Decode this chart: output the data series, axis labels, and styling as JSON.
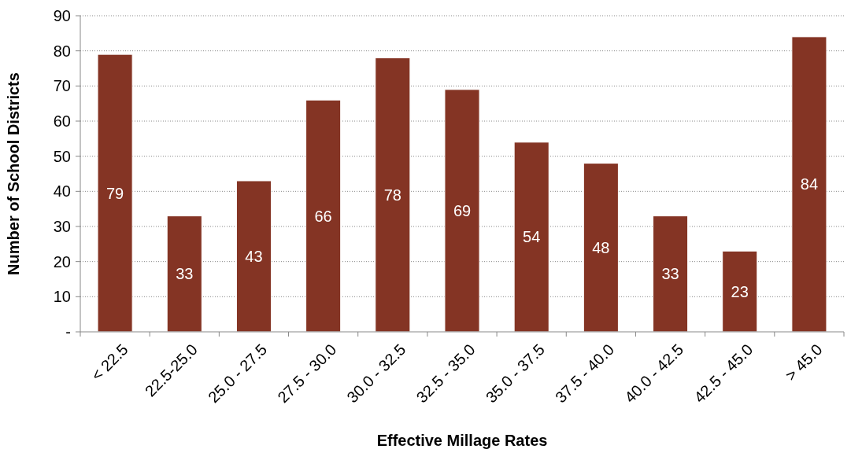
{
  "chart_data": {
    "type": "bar",
    "xlabel": "Effective Millage Rates",
    "ylabel": "Number of School Districts",
    "categories": [
      "< 22.5",
      "22.5-25.0",
      "25.0 - 27.5",
      "27.5 - 30.0",
      "30.0 - 32.5",
      "32.5 - 35.0",
      "35.0 - 37.5",
      "37.5 - 40.0",
      "40.0 - 42.5",
      "42.5 - 45.0",
      "> 45.0"
    ],
    "values": [
      79,
      33,
      43,
      66,
      78,
      69,
      54,
      48,
      33,
      23,
      84
    ],
    "color": "#843424",
    "ylim": [
      0,
      90
    ],
    "yticks": [
      {
        "value": 0,
        "label": "-"
      },
      10,
      20,
      30,
      40,
      50,
      60,
      70,
      80,
      90
    ],
    "grid": "y",
    "data_labels": true
  }
}
